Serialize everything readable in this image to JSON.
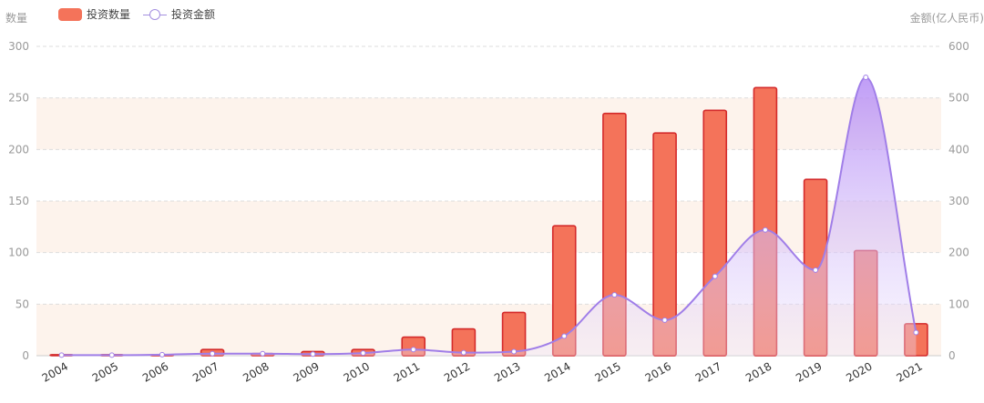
{
  "legend": {
    "bar_label": "投资数量",
    "line_label": "投资金额"
  },
  "axes": {
    "left_name": "数量",
    "right_name": "金额(亿人民币)"
  },
  "colors": {
    "bar_fill": "#f4735a",
    "bar_stroke": "#d42a2a",
    "line": "#a07ee8",
    "band": "#fdf3ec",
    "grid": "#dddddd",
    "axis_text": "#9a9a9a"
  },
  "chart_data": {
    "type": "bar",
    "categories": [
      "2004",
      "2005",
      "2006",
      "2007",
      "2008",
      "2009",
      "2010",
      "2011",
      "2012",
      "2013",
      "2014",
      "2015",
      "2016",
      "2017",
      "2018",
      "2019",
      "2020",
      "2021"
    ],
    "series": [
      {
        "name": "投资数量",
        "type": "bar",
        "axis": "left",
        "values": [
          1,
          1,
          1,
          6,
          2,
          4,
          6,
          18,
          26,
          42,
          126,
          235,
          216,
          238,
          260,
          171,
          102,
          31
        ]
      },
      {
        "name": "投资金额",
        "type": "line",
        "axis": "right",
        "smooth": true,
        "area": true,
        "values": [
          1,
          1,
          2,
          4,
          4,
          3,
          5,
          12,
          6,
          8,
          38,
          118,
          69,
          154,
          244,
          166,
          540,
          45
        ]
      }
    ],
    "y_left": {
      "min": 0,
      "max": 300,
      "ticks": [
        0,
        50,
        100,
        150,
        200,
        250,
        300
      ]
    },
    "y_right": {
      "min": 0,
      "max": 600,
      "ticks": [
        0,
        100,
        200,
        300,
        400,
        500,
        600
      ]
    },
    "grid": true,
    "legend_position": "top-left",
    "title": ""
  }
}
